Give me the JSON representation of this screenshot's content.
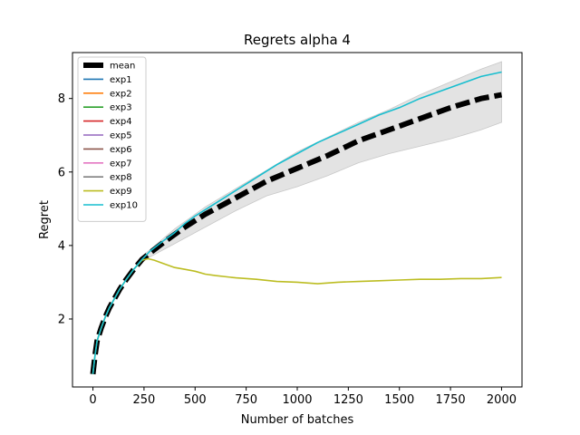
{
  "chart_data": {
    "type": "line",
    "title": "Regrets alpha 4",
    "xlabel": "Number of batches",
    "ylabel": "Regret",
    "xlim": [
      -100,
      2100
    ],
    "ylim": [
      0.15,
      9.25
    ],
    "xticks": [
      0,
      250,
      500,
      750,
      1000,
      1250,
      1500,
      1750,
      2000
    ],
    "yticks": [
      2,
      4,
      6,
      8
    ],
    "grid": false,
    "legend_position": "upper left",
    "mean": {
      "name": "mean",
      "color": "#000000",
      "x": [
        0,
        10,
        20,
        40,
        60,
        80,
        100,
        130,
        160,
        200,
        240,
        280,
        350,
        450,
        550,
        650,
        750,
        850,
        1000,
        1150,
        1300,
        1450,
        1600,
        1750,
        1900,
        2000
      ],
      "y": [
        0.5,
        1.0,
        1.4,
        1.75,
        2.05,
        2.3,
        2.5,
        2.8,
        3.05,
        3.35,
        3.62,
        3.8,
        4.1,
        4.5,
        4.85,
        5.15,
        5.45,
        5.75,
        6.1,
        6.45,
        6.85,
        7.15,
        7.45,
        7.75,
        8.0,
        8.1
      ]
    },
    "band": {
      "name": "range",
      "color": "#e3e3e3",
      "x": [
        250,
        400,
        550,
        700,
        850,
        1000,
        1150,
        1300,
        1450,
        1600,
        1750,
        1900,
        2000
      ],
      "upper": [
        3.75,
        4.45,
        5.05,
        5.55,
        6.05,
        6.55,
        6.95,
        7.35,
        7.7,
        8.1,
        8.45,
        8.8,
        9.0
      ],
      "lower": [
        3.6,
        4.05,
        4.5,
        4.95,
        5.35,
        5.6,
        5.9,
        6.25,
        6.5,
        6.7,
        6.9,
        7.15,
        7.35
      ]
    },
    "series": [
      {
        "name": "exp1",
        "color": "#1f77b4"
      },
      {
        "name": "exp2",
        "color": "#ff7f0e"
      },
      {
        "name": "exp3",
        "color": "#2ca02c"
      },
      {
        "name": "exp4",
        "color": "#d62728"
      },
      {
        "name": "exp5",
        "color": "#9467bd"
      },
      {
        "name": "exp6",
        "color": "#8c564b"
      },
      {
        "name": "exp7",
        "color": "#e377c2"
      },
      {
        "name": "exp8",
        "color": "#7f7f7f"
      },
      {
        "name": "exp9",
        "color": "#bcbd22",
        "x": [
          0,
          10,
          20,
          40,
          60,
          80,
          100,
          130,
          160,
          200,
          240,
          270,
          300,
          350,
          400,
          450,
          500,
          550,
          600,
          700,
          800,
          900,
          1000,
          1100,
          1200,
          1300,
          1400,
          1500,
          1600,
          1700,
          1800,
          1900,
          2000
        ],
        "y": [
          0.5,
          1.0,
          1.4,
          1.75,
          2.05,
          2.3,
          2.5,
          2.8,
          3.05,
          3.35,
          3.6,
          3.64,
          3.6,
          3.5,
          3.4,
          3.35,
          3.3,
          3.22,
          3.18,
          3.12,
          3.08,
          3.02,
          3.0,
          2.96,
          3.0,
          3.02,
          3.04,
          3.06,
          3.08,
          3.08,
          3.1,
          3.1,
          3.13
        ]
      },
      {
        "name": "exp10",
        "color": "#17becf",
        "x": [
          0,
          10,
          20,
          40,
          60,
          80,
          100,
          130,
          160,
          200,
          240,
          280,
          350,
          400,
          450,
          500,
          600,
          700,
          800,
          900,
          1000,
          1100,
          1200,
          1300,
          1400,
          1500,
          1600,
          1700,
          1800,
          1900,
          2000
        ],
        "y": [
          0.5,
          1.0,
          1.4,
          1.75,
          2.05,
          2.3,
          2.5,
          2.8,
          3.05,
          3.35,
          3.62,
          3.85,
          4.15,
          4.35,
          4.6,
          4.8,
          5.15,
          5.5,
          5.85,
          6.2,
          6.5,
          6.8,
          7.05,
          7.3,
          7.55,
          7.75,
          8.0,
          8.2,
          8.4,
          8.6,
          8.72
        ]
      }
    ]
  }
}
